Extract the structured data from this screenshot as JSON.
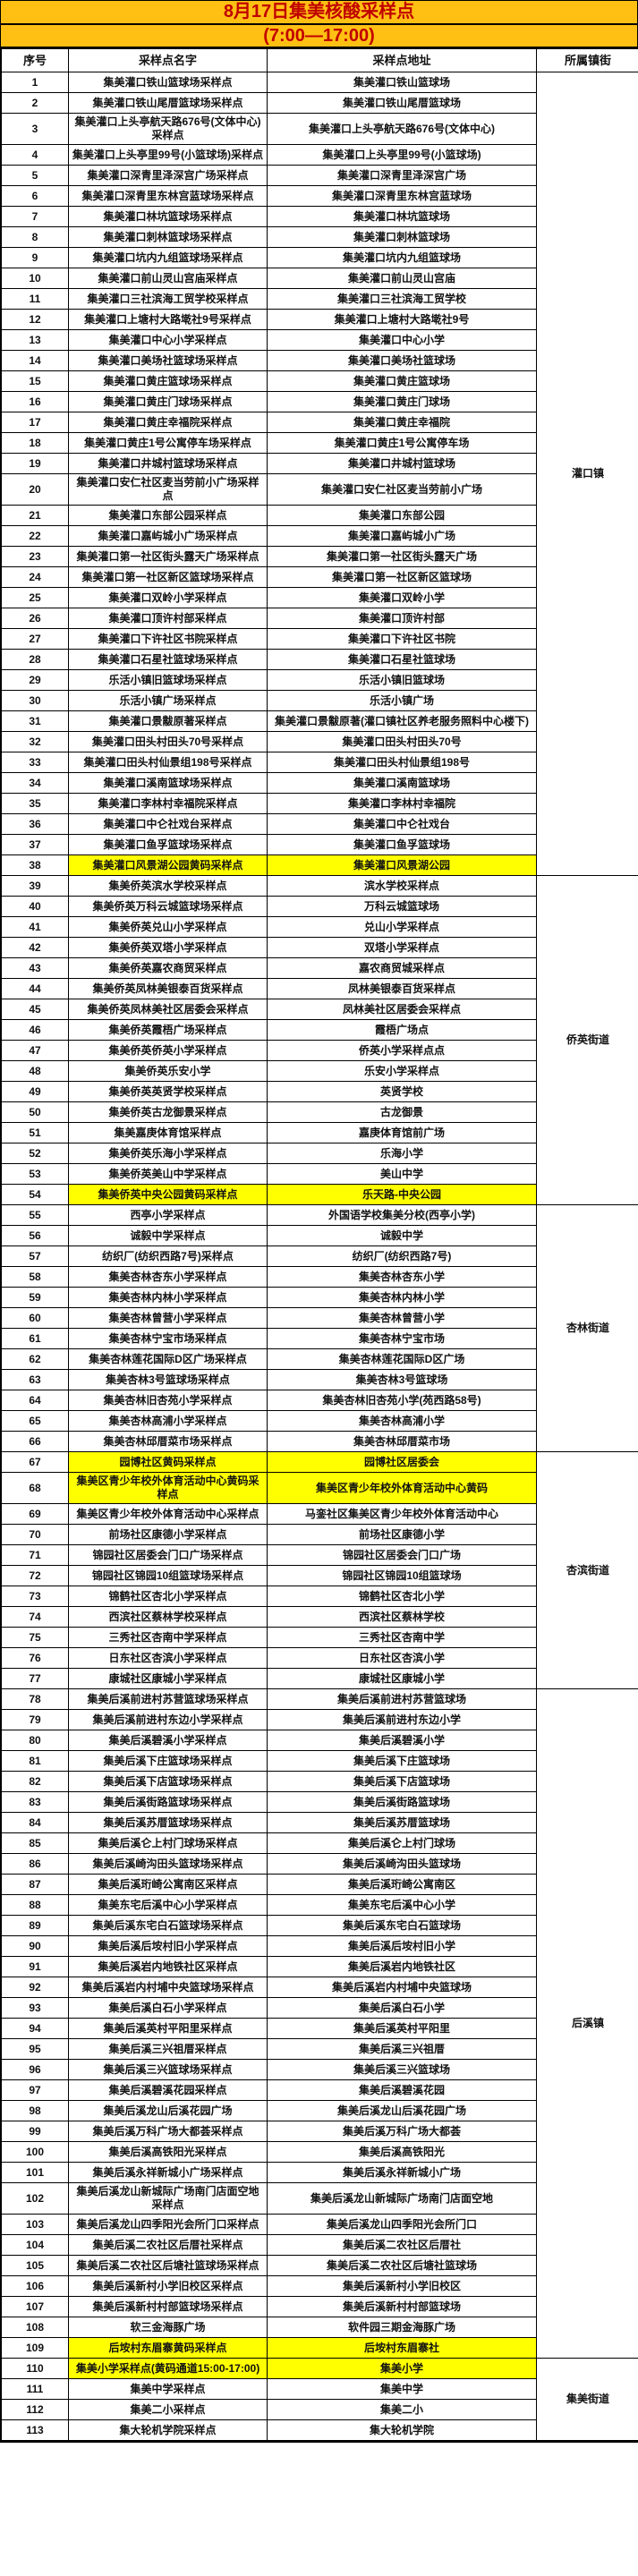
{
  "header": {
    "title": "8月17日集美核酸采样点",
    "subtitle": "(7:00—17:00)"
  },
  "columns": [
    "序号",
    "采样点名字",
    "采样点地址",
    "所属镇街"
  ],
  "colors": {
    "header_bg": "#FFC013",
    "title_text": "#C00000",
    "highlight_bg": "#FFFF00",
    "border": "#000000"
  },
  "sections": [
    {
      "street": "灌口镇",
      "rows": [
        {
          "no": "1",
          "name": "集美灌口铁山篮球场采样点",
          "addr": "集美灌口铁山篮球场",
          "highlight": false
        },
        {
          "no": "2",
          "name": "集美灌口铁山尾厝篮球场采样点",
          "addr": "集美灌口铁山尾厝篮球场",
          "highlight": false
        },
        {
          "no": "3",
          "name": "集美灌口上头亭航天路676号(文体中心)采样点",
          "addr": "集美灌口上头亭航天路676号(文体中心)",
          "highlight": false
        },
        {
          "no": "4",
          "name": "集美灌口上头亭里99号(小篮球场)采样点",
          "addr": "集美灌口上头亭里99号(小篮球场)",
          "highlight": false
        },
        {
          "no": "5",
          "name": "集美灌口深青里泽深宫广场采样点",
          "addr": "集美灌口深青里泽深宫广场",
          "highlight": false
        },
        {
          "no": "6",
          "name": "集美灌口深青里东林宫蓝球场采样点",
          "addr": "集美灌口深青里东林宫蓝球场",
          "highlight": false
        },
        {
          "no": "7",
          "name": "集美灌口林坑篮球场采样点",
          "addr": "集美灌口林坑篮球场",
          "highlight": false
        },
        {
          "no": "8",
          "name": "集美灌口刺林篮球场采样点",
          "addr": "集美灌口刺林篮球场",
          "highlight": false
        },
        {
          "no": "9",
          "name": "集美灌口坑内九组篮球场采样点",
          "addr": "集美灌口坑内九组篮球场",
          "highlight": false
        },
        {
          "no": "10",
          "name": "集美灌口前山灵山宫庙采样点",
          "addr": "集美灌口前山灵山宫庙",
          "highlight": false
        },
        {
          "no": "11",
          "name": "集美灌口三社滨海工贸学校采样点",
          "addr": "集美灌口三社滨海工贸学校",
          "highlight": false
        },
        {
          "no": "12",
          "name": "集美灌口上塘村大路墘社9号采样点",
          "addr": "集美灌口上塘村大路墘社9号",
          "highlight": false
        },
        {
          "no": "13",
          "name": "集美灌口中心小学采样点",
          "addr": "集美灌口中心小学",
          "highlight": false
        },
        {
          "no": "14",
          "name": "集美灌口美场社篮球场采样点",
          "addr": "集美灌口美场社篮球场",
          "highlight": false
        },
        {
          "no": "15",
          "name": "集美灌口黄庄篮球场采样点",
          "addr": "集美灌口黄庄篮球场",
          "highlight": false
        },
        {
          "no": "16",
          "name": "集美灌口黄庄门球场采样点",
          "addr": "集美灌口黄庄门球场",
          "highlight": false
        },
        {
          "no": "17",
          "name": "集美灌口黄庄幸福院采样点",
          "addr": "集美灌口黄庄幸福院",
          "highlight": false
        },
        {
          "no": "18",
          "name": "集美灌口黄庄1号公寓停车场采样点",
          "addr": "集美灌口黄庄1号公寓停车场",
          "highlight": false
        },
        {
          "no": "19",
          "name": "集美灌口井城村篮球场采样点",
          "addr": "集美灌口井城村篮球场",
          "highlight": false
        },
        {
          "no": "20",
          "name": "集美灌口安仁社区麦当劳前小广场采样点",
          "addr": "集美灌口安仁社区麦当劳前小广场",
          "highlight": false
        },
        {
          "no": "21",
          "name": "集美灌口东部公园采样点",
          "addr": "集美灌口东部公园",
          "highlight": false
        },
        {
          "no": "22",
          "name": "集美灌口嘉屿城小广场采样点",
          "addr": "集美灌口嘉屿城小广场",
          "highlight": false
        },
        {
          "no": "23",
          "name": "集美灌口第一社区街头露天广场采样点",
          "addr": "集美灌口第一社区街头露天广场",
          "highlight": false
        },
        {
          "no": "24",
          "name": "集美灌口第一社区新区篮球场采样点",
          "addr": "集美灌口第一社区新区篮球场",
          "highlight": false
        },
        {
          "no": "25",
          "name": "集美灌口双岭小学采样点",
          "addr": "集美灌口双岭小学",
          "highlight": false
        },
        {
          "no": "26",
          "name": "集美灌口顶许村部采样点",
          "addr": "集美灌口顶许村部",
          "highlight": false
        },
        {
          "no": "27",
          "name": "集美灌口下许社区书院采样点",
          "addr": "集美灌口下许社区书院",
          "highlight": false
        },
        {
          "no": "28",
          "name": "集美灌口石星社篮球场采样点",
          "addr": "集美灌口石星社篮球场",
          "highlight": false
        },
        {
          "no": "29",
          "name": "乐活小镇旧篮球场采样点",
          "addr": "乐活小镇旧篮球场",
          "highlight": false
        },
        {
          "no": "30",
          "name": "乐活小镇广场采样点",
          "addr": "乐活小镇广场",
          "highlight": false
        },
        {
          "no": "31",
          "name": "集美灌口景黻原著采样点",
          "addr": "集美灌口景黻原著(灌口镇社区养老服务照料中心楼下)",
          "highlight": false
        },
        {
          "no": "32",
          "name": "集美灌口田头村田头70号采样点",
          "addr": "集美灌口田头村田头70号",
          "highlight": false
        },
        {
          "no": "33",
          "name": "集美灌口田头村仙景组198号采样点",
          "addr": "集美灌口田头村仙景组198号",
          "highlight": false
        },
        {
          "no": "34",
          "name": "集美灌口溪南篮球场采样点",
          "addr": "集美灌口溪南篮球场",
          "highlight": false
        },
        {
          "no": "35",
          "name": "集美灌口李林村幸福院采样点",
          "addr": "集美灌口李林村幸福院",
          "highlight": false
        },
        {
          "no": "36",
          "name": "集美灌口中仑社戏台采样点",
          "addr": "集美灌口中仑社戏台",
          "highlight": false
        },
        {
          "no": "37",
          "name": "集美灌口鱼孚篮球场采样点",
          "addr": "集美灌口鱼孚篮球场",
          "highlight": false
        },
        {
          "no": "38",
          "name": "集美灌口风景湖公园黄码采样点",
          "addr": "集美灌口风景湖公园",
          "highlight": true
        }
      ]
    },
    {
      "street": "侨英街道",
      "rows": [
        {
          "no": "39",
          "name": "集美侨英滨水学校采样点",
          "addr": "滨水学校采样点",
          "highlight": false
        },
        {
          "no": "40",
          "name": "集美侨英万科云城篮球场采样点",
          "addr": "万科云城篮球场",
          "highlight": false
        },
        {
          "no": "41",
          "name": "集美侨英兑山小学采样点",
          "addr": "兑山小学采样点",
          "highlight": false
        },
        {
          "no": "42",
          "name": "集美侨英双塔小学采样点",
          "addr": "双塔小学采样点",
          "highlight": false
        },
        {
          "no": "43",
          "name": "集美侨英嘉农商贸采样点",
          "addr": "嘉农商贸城采样点",
          "highlight": false
        },
        {
          "no": "44",
          "name": "集美侨英凤林美银泰百货采样点",
          "addr": "凤林美银泰百货采样点",
          "highlight": false
        },
        {
          "no": "45",
          "name": "集美侨英凤林美社区居委会采样点",
          "addr": "凤林美社区居委会采样点",
          "highlight": false
        },
        {
          "no": "46",
          "name": "集美侨英霞梧广场采样点",
          "addr": "霞梧广场点",
          "highlight": false
        },
        {
          "no": "47",
          "name": "集美侨英侨英小学采样点",
          "addr": "侨英小学采样点点",
          "highlight": false
        },
        {
          "no": "48",
          "name": "集美侨英乐安小学",
          "addr": "乐安小学采样点",
          "highlight": false
        },
        {
          "no": "49",
          "name": "集美侨英英贤学校采样点",
          "addr": "英贤学校",
          "highlight": false
        },
        {
          "no": "50",
          "name": "集美侨英古龙御景采样点",
          "addr": "古龙御景",
          "highlight": false
        },
        {
          "no": "51",
          "name": "集美嘉庚体育馆采样点",
          "addr": "嘉庚体育馆前广场",
          "highlight": false
        },
        {
          "no": "52",
          "name": "集美侨英乐海小学采样点",
          "addr": "乐海小学",
          "highlight": false
        },
        {
          "no": "53",
          "name": "集美侨英美山中学采样点",
          "addr": "美山中学",
          "highlight": false
        },
        {
          "no": "54",
          "name": "集美侨英中央公园黄码采样点",
          "addr": "乐天路-中央公园",
          "highlight": true
        }
      ]
    },
    {
      "street": "杏林街道",
      "rows": [
        {
          "no": "55",
          "name": "西亭小学采样点",
          "addr": "外国语学校集美分校(西亭小学)",
          "highlight": false
        },
        {
          "no": "56",
          "name": "诚毅中学采样点",
          "addr": "诚毅中学",
          "highlight": false
        },
        {
          "no": "57",
          "name": "纺织厂(纺织西路7号)采样点",
          "addr": "纺织厂(纺织西路7号)",
          "highlight": false
        },
        {
          "no": "58",
          "name": "集美杏林杏东小学采样点",
          "addr": "集美杏林杏东小学",
          "highlight": false
        },
        {
          "no": "59",
          "name": "集美杏林内林小学采样点",
          "addr": "集美杏林内林小学",
          "highlight": false
        },
        {
          "no": "60",
          "name": "集美杏林曾营小学采样点",
          "addr": "集美杏林曾营小学",
          "highlight": false
        },
        {
          "no": "61",
          "name": "集美杏林宁宝市场采样点",
          "addr": "集美杏林宁宝市场",
          "highlight": false
        },
        {
          "no": "62",
          "name": "集美杏林莲花国际D区广场采样点",
          "addr": "集美杏林莲花国际D区广场",
          "highlight": false
        },
        {
          "no": "63",
          "name": "集美杏林3号篮球场采样点",
          "addr": "集美杏林3号篮球场",
          "highlight": false
        },
        {
          "no": "64",
          "name": "集美杏林旧杏苑小学采样点",
          "addr": "集美杏林旧杏苑小学(苑西路58号)",
          "highlight": false
        },
        {
          "no": "65",
          "name": "集美杏林高浦小学采样点",
          "addr": "集美杏林高浦小学",
          "highlight": false
        },
        {
          "no": "66",
          "name": "集美杏林邱厝菜市场采样点",
          "addr": "集美杏林邱厝菜市场",
          "highlight": false
        }
      ]
    },
    {
      "street": "杏滨街道",
      "rows": [
        {
          "no": "67",
          "name": "园博社区黄码采样点",
          "addr": "园博社区居委会",
          "highlight": true
        },
        {
          "no": "68",
          "name": "集美区青少年校外体育活动中心黄码采样点",
          "addr": "集美区青少年校外体育活动中心黄码",
          "highlight": true
        },
        {
          "no": "69",
          "name": "集美区青少年校外体育活动中心采样点",
          "addr": "马銮社区集美区青少年校外体育活动中心",
          "highlight": false
        },
        {
          "no": "70",
          "name": "前场社区康德小学采样点",
          "addr": "前场社区康德小学",
          "highlight": false
        },
        {
          "no": "71",
          "name": "锦园社区居委会门口广场采样点",
          "addr": "锦园社区居委会门口广场",
          "highlight": false
        },
        {
          "no": "72",
          "name": "锦园社区锦园10组篮球场采样点",
          "addr": "锦园社区锦园10组篮球场",
          "highlight": false
        },
        {
          "no": "73",
          "name": "锦鹤社区杏北小学采样点",
          "addr": "锦鹤社区杏北小学",
          "highlight": false
        },
        {
          "no": "74",
          "name": "西滨社区蔡林学校采样点",
          "addr": "西滨社区蔡林学校",
          "highlight": false
        },
        {
          "no": "75",
          "name": "三秀社区杏南中学采样点",
          "addr": "三秀社区杏南中学",
          "highlight": false
        },
        {
          "no": "76",
          "name": "日东社区杏滨小学采样点",
          "addr": "日东社区杏滨小学",
          "highlight": false
        },
        {
          "no": "77",
          "name": "康城社区康城小学采样点",
          "addr": "康城社区康城小学",
          "highlight": false
        }
      ]
    },
    {
      "street": "后溪镇",
      "rows": [
        {
          "no": "78",
          "name": "集美后溪前进村苏营篮球场采样点",
          "addr": "集美后溪前进村苏营篮球场",
          "highlight": false
        },
        {
          "no": "79",
          "name": "集美后溪前进村东边小学采样点",
          "addr": "集美后溪前进村东边小学",
          "highlight": false
        },
        {
          "no": "80",
          "name": "集美后溪碧溪小学采样点",
          "addr": "集美后溪碧溪小学",
          "highlight": false
        },
        {
          "no": "81",
          "name": "集美后溪下庄篮球场采样点",
          "addr": "集美后溪下庄篮球场",
          "highlight": false
        },
        {
          "no": "82",
          "name": "集美后溪下店篮球场采样点",
          "addr": "集美后溪下店篮球场",
          "highlight": false
        },
        {
          "no": "83",
          "name": "集美后溪街路篮球场采样点",
          "addr": "集美后溪街路篮球场",
          "highlight": false
        },
        {
          "no": "84",
          "name": "集美后溪苏厝篮球场采样点",
          "addr": "集美后溪苏厝篮球场",
          "highlight": false
        },
        {
          "no": "85",
          "name": "集美后溪仑上村门球场采样点",
          "addr": "集美后溪仑上村门球场",
          "highlight": false
        },
        {
          "no": "86",
          "name": "集美后溪崎沟田头篮球场采样点",
          "addr": "集美后溪崎沟田头篮球场",
          "highlight": false
        },
        {
          "no": "87",
          "name": "集美后溪珩崎公寓南区采样点",
          "addr": "集美后溪珩崎公寓南区",
          "highlight": false
        },
        {
          "no": "88",
          "name": "集美东宅后溪中心小学采样点",
          "addr": "集美东宅后溪中心小学",
          "highlight": false
        },
        {
          "no": "89",
          "name": "集美后溪东宅白石篮球场采样点",
          "addr": "集美后溪东宅白石篮球场",
          "highlight": false
        },
        {
          "no": "90",
          "name": "集美后溪后垵村旧小学采样点",
          "addr": "集美后溪后垵村旧小学",
          "highlight": false
        },
        {
          "no": "91",
          "name": "集美后溪岩内地铁社区采样点",
          "addr": "集美后溪岩内地铁社区",
          "highlight": false
        },
        {
          "no": "92",
          "name": "集美后溪岩内村埔中央篮球场采样点",
          "addr": "集美后溪岩内村埔中央篮球场",
          "highlight": false
        },
        {
          "no": "93",
          "name": "集美后溪白石小学采样点",
          "addr": "集美后溪白石小学",
          "highlight": false
        },
        {
          "no": "94",
          "name": "集美后溪英村平阳里采样点",
          "addr": "集美后溪英村平阳里",
          "highlight": false
        },
        {
          "no": "95",
          "name": "集美后溪三兴祖厝采样点",
          "addr": "集美后溪三兴祖厝",
          "highlight": false
        },
        {
          "no": "96",
          "name": "集美后溪三兴篮球场采样点",
          "addr": "集美后溪三兴篮球场",
          "highlight": false
        },
        {
          "no": "97",
          "name": "集美后溪碧溪花园采样点",
          "addr": "集美后溪碧溪花园",
          "highlight": false
        },
        {
          "no": "98",
          "name": "集美后溪龙山后溪花园广场",
          "addr": "集美后溪龙山后溪花园广场",
          "highlight": false
        },
        {
          "no": "99",
          "name": "集美后溪万科广场大都荟采样点",
          "addr": "集美后溪万科广场大都荟",
          "highlight": false
        },
        {
          "no": "100",
          "name": "集美后溪高铁阳光采样点",
          "addr": "集美后溪高铁阳光",
          "highlight": false
        },
        {
          "no": "101",
          "name": "集美后溪永祥新城小广场采样点",
          "addr": "集美后溪永祥新城小广场",
          "highlight": false
        },
        {
          "no": "102",
          "name": "集美后溪龙山新城际广场南门店面空地采样点",
          "addr": "集美后溪龙山新城际广场南门店面空地",
          "highlight": false
        },
        {
          "no": "103",
          "name": "集美后溪龙山四季阳光会所门口采样点",
          "addr": "集美后溪龙山四季阳光会所门口",
          "highlight": false
        },
        {
          "no": "104",
          "name": "集美后溪二农社区后厝社采样点",
          "addr": "集美后溪二农社区后厝社",
          "highlight": false
        },
        {
          "no": "105",
          "name": "集美后溪二农社区后塘社篮球场采样点",
          "addr": "集美后溪二农社区后塘社篮球场",
          "highlight": false
        },
        {
          "no": "106",
          "name": "集美后溪新村小学旧校区采样点",
          "addr": "集美后溪新村小学旧校区",
          "highlight": false
        },
        {
          "no": "107",
          "name": "集美后溪新村村部篮球场采样点",
          "addr": "集美后溪新村村部篮球场",
          "highlight": false
        },
        {
          "no": "108",
          "name": "软三金海豚广场",
          "addr": "软件园三期金海豚广场",
          "highlight": false
        },
        {
          "no": "109",
          "name": "后垵村东眉寨黄码采样点",
          "addr": "后垵村东眉寨社",
          "highlight": true
        }
      ]
    },
    {
      "street": "集美街道",
      "rows": [
        {
          "no": "110",
          "name": "集美小学采样点(黄码通道15:00-17:00)",
          "addr": "集美小学",
          "highlight": true
        },
        {
          "no": "111",
          "name": "集美中学采样点",
          "addr": "集美中学",
          "highlight": false
        },
        {
          "no": "112",
          "name": "集美二小采样点",
          "addr": "集美二小",
          "highlight": false
        },
        {
          "no": "113",
          "name": "集大轮机学院采样点",
          "addr": "集大轮机学院",
          "highlight": false
        }
      ]
    }
  ]
}
